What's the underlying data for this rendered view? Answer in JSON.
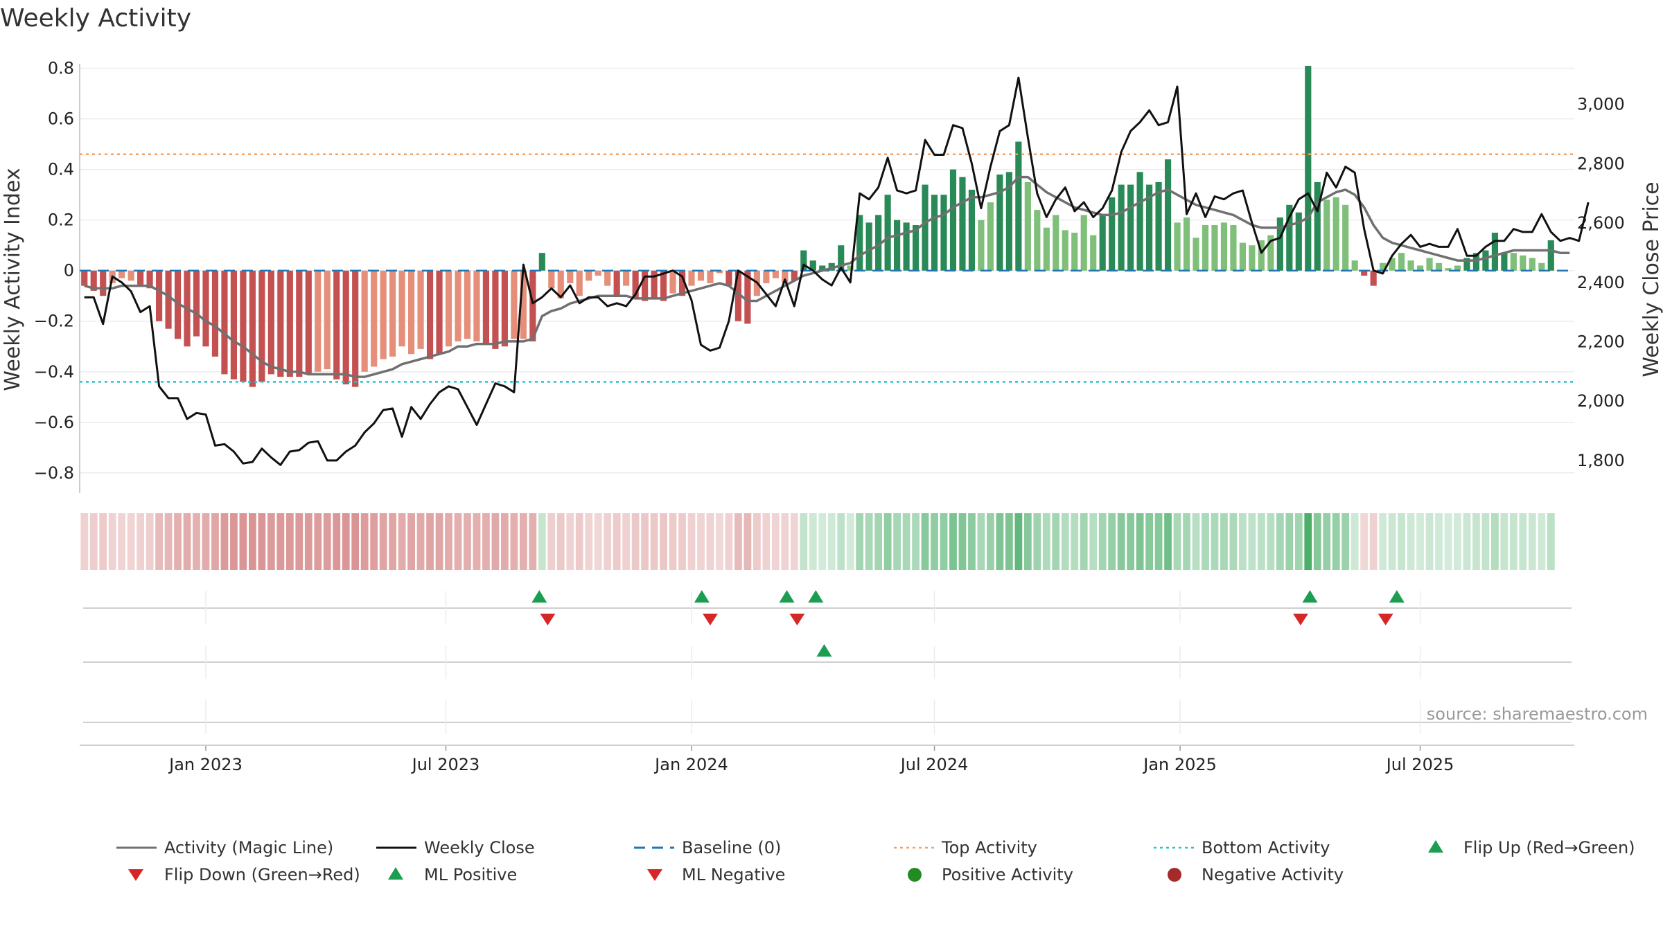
{
  "title": "Weekly Activity",
  "source": "source: sharemaestro.com",
  "colors": {
    "neg_dark": "#c45152",
    "neg_light": "#e58f7a",
    "pos_dark": "#2a8a57",
    "pos_light": "#7fbf7a",
    "magic": "#707070",
    "close": "#111111",
    "baseline": "#1f77b4",
    "top": "#f3a263",
    "bottom": "#22c3cf",
    "up": "#1b9e50",
    "down": "#d62728",
    "pos_dot": "#228b22",
    "neg_dot": "#a52a2a"
  },
  "chart_data": {
    "type": "bar",
    "title": "Weekly Activity",
    "ylabel": "Weekly Activity Index",
    "y2label": "Weekly Close Price",
    "ylim": [
      -0.88,
      0.81
    ],
    "y2lim": [
      1690,
      3130
    ],
    "yticks": [
      "0.8",
      "0.6",
      "0.4",
      "0.2",
      "0",
      "−0.2",
      "−0.4",
      "−0.6",
      "−0.8"
    ],
    "ytick_values": [
      0.8,
      0.6,
      0.4,
      0.2,
      0,
      -0.2,
      -0.4,
      -0.6,
      -0.8
    ],
    "y2ticks": [
      "3,000",
      "2,800",
      "2,600",
      "2,400",
      "2,200",
      "2,000",
      "1,800"
    ],
    "y2tick_values": [
      3000,
      2800,
      2600,
      2400,
      2200,
      2000,
      1800
    ],
    "x_start": "2022-10-02",
    "week_count": 160,
    "xticks": [
      {
        "label": "Jan 2023",
        "week": 13.0
      },
      {
        "label": "Jul 2023",
        "week": 38.7
      },
      {
        "label": "Jan 2024",
        "week": 65.0
      },
      {
        "label": "Jul 2024",
        "week": 91.0
      },
      {
        "label": "Jan 2025",
        "week": 117.3
      },
      {
        "label": "Jul 2025",
        "week": 143.0
      }
    ],
    "top_activity": 0.46,
    "bottom_activity": -0.44,
    "baseline": 0,
    "activity": [
      -0.06,
      -0.08,
      -0.1,
      -0.05,
      -0.03,
      -0.04,
      -0.06,
      -0.07,
      -0.2,
      -0.23,
      -0.27,
      -0.3,
      -0.26,
      -0.3,
      -0.34,
      -0.41,
      -0.43,
      -0.44,
      -0.46,
      -0.44,
      -0.41,
      -0.42,
      -0.42,
      -0.42,
      -0.41,
      -0.4,
      -0.39,
      -0.43,
      -0.45,
      -0.46,
      -0.4,
      -0.38,
      -0.35,
      -0.34,
      -0.3,
      -0.33,
      -0.31,
      -0.35,
      -0.33,
      -0.3,
      -0.28,
      -0.27,
      -0.28,
      -0.29,
      -0.31,
      -0.3,
      -0.27,
      -0.27,
      -0.28,
      0.07,
      -0.07,
      -0.11,
      -0.05,
      -0.1,
      -0.04,
      -0.02,
      -0.06,
      -0.1,
      -0.06,
      -0.11,
      -0.12,
      -0.11,
      -0.12,
      -0.09,
      -0.1,
      -0.06,
      -0.04,
      -0.05,
      -0.01,
      -0.06,
      -0.2,
      -0.21,
      -0.1,
      -0.05,
      -0.03,
      -0.05,
      -0.04,
      0.08,
      0.04,
      0.02,
      0.03,
      0.1,
      0.02,
      0.22,
      0.19,
      0.22,
      0.3,
      0.2,
      0.19,
      0.18,
      0.34,
      0.3,
      0.3,
      0.4,
      0.37,
      0.32,
      0.2,
      0.27,
      0.38,
      0.39,
      0.51,
      0.35,
      0.24,
      0.17,
      0.22,
      0.16,
      0.15,
      0.22,
      0.14,
      0.22,
      0.29,
      0.34,
      0.34,
      0.39,
      0.34,
      0.35,
      0.44,
      0.19,
      0.21,
      0.13,
      0.18,
      0.18,
      0.19,
      0.18,
      0.11,
      0.1,
      0.12,
      0.14,
      0.21,
      0.26,
      0.23,
      0.81,
      0.35,
      0.28,
      0.29,
      0.26,
      0.04,
      -0.02,
      -0.06,
      0.03,
      0.05,
      0.07,
      0.04,
      0.02,
      0.05,
      0.03,
      0.01,
      0.02,
      0.05,
      0.07,
      0.08,
      0.15,
      0.07,
      0.07,
      0.06,
      0.05,
      0.03,
      0.12
    ],
    "magic_line": [
      -0.06,
      -0.07,
      -0.07,
      -0.07,
      -0.06,
      -0.06,
      -0.06,
      -0.06,
      -0.08,
      -0.1,
      -0.13,
      -0.15,
      -0.17,
      -0.2,
      -0.22,
      -0.25,
      -0.28,
      -0.3,
      -0.33,
      -0.36,
      -0.38,
      -0.39,
      -0.4,
      -0.4,
      -0.41,
      -0.41,
      -0.41,
      -0.41,
      -0.41,
      -0.42,
      -0.42,
      -0.41,
      -0.4,
      -0.39,
      -0.37,
      -0.36,
      -0.35,
      -0.34,
      -0.33,
      -0.32,
      -0.3,
      -0.3,
      -0.29,
      -0.29,
      -0.29,
      -0.28,
      -0.28,
      -0.28,
      -0.27,
      -0.18,
      -0.16,
      -0.15,
      -0.13,
      -0.12,
      -0.11,
      -0.1,
      -0.1,
      -0.1,
      -0.1,
      -0.11,
      -0.11,
      -0.11,
      -0.11,
      -0.1,
      -0.09,
      -0.08,
      -0.07,
      -0.06,
      -0.05,
      -0.06,
      -0.09,
      -0.12,
      -0.12,
      -0.1,
      -0.08,
      -0.06,
      -0.04,
      -0.02,
      -0.01,
      0.0,
      0.01,
      0.02,
      0.03,
      0.06,
      0.08,
      0.1,
      0.13,
      0.14,
      0.15,
      0.16,
      0.19,
      0.21,
      0.22,
      0.25,
      0.27,
      0.29,
      0.29,
      0.3,
      0.31,
      0.33,
      0.37,
      0.37,
      0.34,
      0.31,
      0.29,
      0.27,
      0.25,
      0.24,
      0.23,
      0.22,
      0.22,
      0.23,
      0.25,
      0.27,
      0.29,
      0.31,
      0.32,
      0.3,
      0.28,
      0.26,
      0.25,
      0.24,
      0.23,
      0.22,
      0.2,
      0.18,
      0.17,
      0.17,
      0.17,
      0.18,
      0.19,
      0.21,
      0.27,
      0.29,
      0.31,
      0.32,
      0.3,
      0.25,
      0.18,
      0.13,
      0.11,
      0.1,
      0.09,
      0.08,
      0.07,
      0.06,
      0.05,
      0.04,
      0.04,
      0.04,
      0.05,
      0.06,
      0.07,
      0.08,
      0.08,
      0.08,
      0.08,
      0.08,
      0.07,
      0.07
    ],
    "weekly_close": [
      2350,
      2350,
      2260,
      2420,
      2400,
      2370,
      2300,
      2320,
      2050,
      2010,
      2010,
      1940,
      1960,
      1955,
      1850,
      1855,
      1830,
      1790,
      1795,
      1840,
      1810,
      1785,
      1830,
      1835,
      1860,
      1865,
      1800,
      1800,
      1830,
      1850,
      1895,
      1925,
      1970,
      1975,
      1880,
      1980,
      1940,
      1990,
      2030,
      2050,
      2040,
      1980,
      1920,
      1990,
      2060,
      2050,
      2030,
      2460,
      2330,
      2350,
      2380,
      2350,
      2390,
      2330,
      2350,
      2350,
      2320,
      2330,
      2320,
      2360,
      2420,
      2420,
      2430,
      2440,
      2420,
      2340,
      2190,
      2170,
      2180,
      2270,
      2440,
      2420,
      2400,
      2360,
      2320,
      2410,
      2320,
      2460,
      2440,
      2410,
      2390,
      2450,
      2400,
      2700,
      2680,
      2720,
      2820,
      2710,
      2700,
      2710,
      2880,
      2830,
      2830,
      2930,
      2920,
      2800,
      2650,
      2790,
      2910,
      2930,
      3090,
      2890,
      2700,
      2620,
      2680,
      2720,
      2640,
      2670,
      2620,
      2650,
      2710,
      2840,
      2910,
      2940,
      2980,
      2930,
      2940,
      3060,
      2630,
      2700,
      2620,
      2690,
      2680,
      2700,
      2710,
      2600,
      2500,
      2540,
      2550,
      2620,
      2680,
      2700,
      2640,
      2770,
      2720,
      2790,
      2770,
      2580,
      2440,
      2430,
      2490,
      2530,
      2560,
      2520,
      2530,
      2520,
      2520,
      2580,
      2490,
      2490,
      2520,
      2540,
      2540,
      2580,
      2570,
      2570,
      2630,
      2570,
      2540,
      2550,
      2540,
      2670
    ]
  },
  "markers": {
    "row1_labels": [
      "Flip Up",
      "Flip Down"
    ],
    "flip_up_weeks": [
      48.7,
      66.1,
      75.2,
      78.3,
      131.2,
      140.5
    ],
    "flip_down_weeks": [
      49.6,
      67.0,
      76.3,
      130.2,
      139.3
    ],
    "ml_positive_weeks": [
      79.2
    ]
  },
  "legend": [
    "Activity (Magic Line)",
    "Weekly Close",
    "Baseline (0)",
    "Top Activity",
    "Bottom Activity",
    "Flip Up (Red→Green)",
    "Flip Down (Green→Red)",
    "ML Positive",
    "ML Negative",
    "Positive Activity",
    "Negative Activity"
  ]
}
